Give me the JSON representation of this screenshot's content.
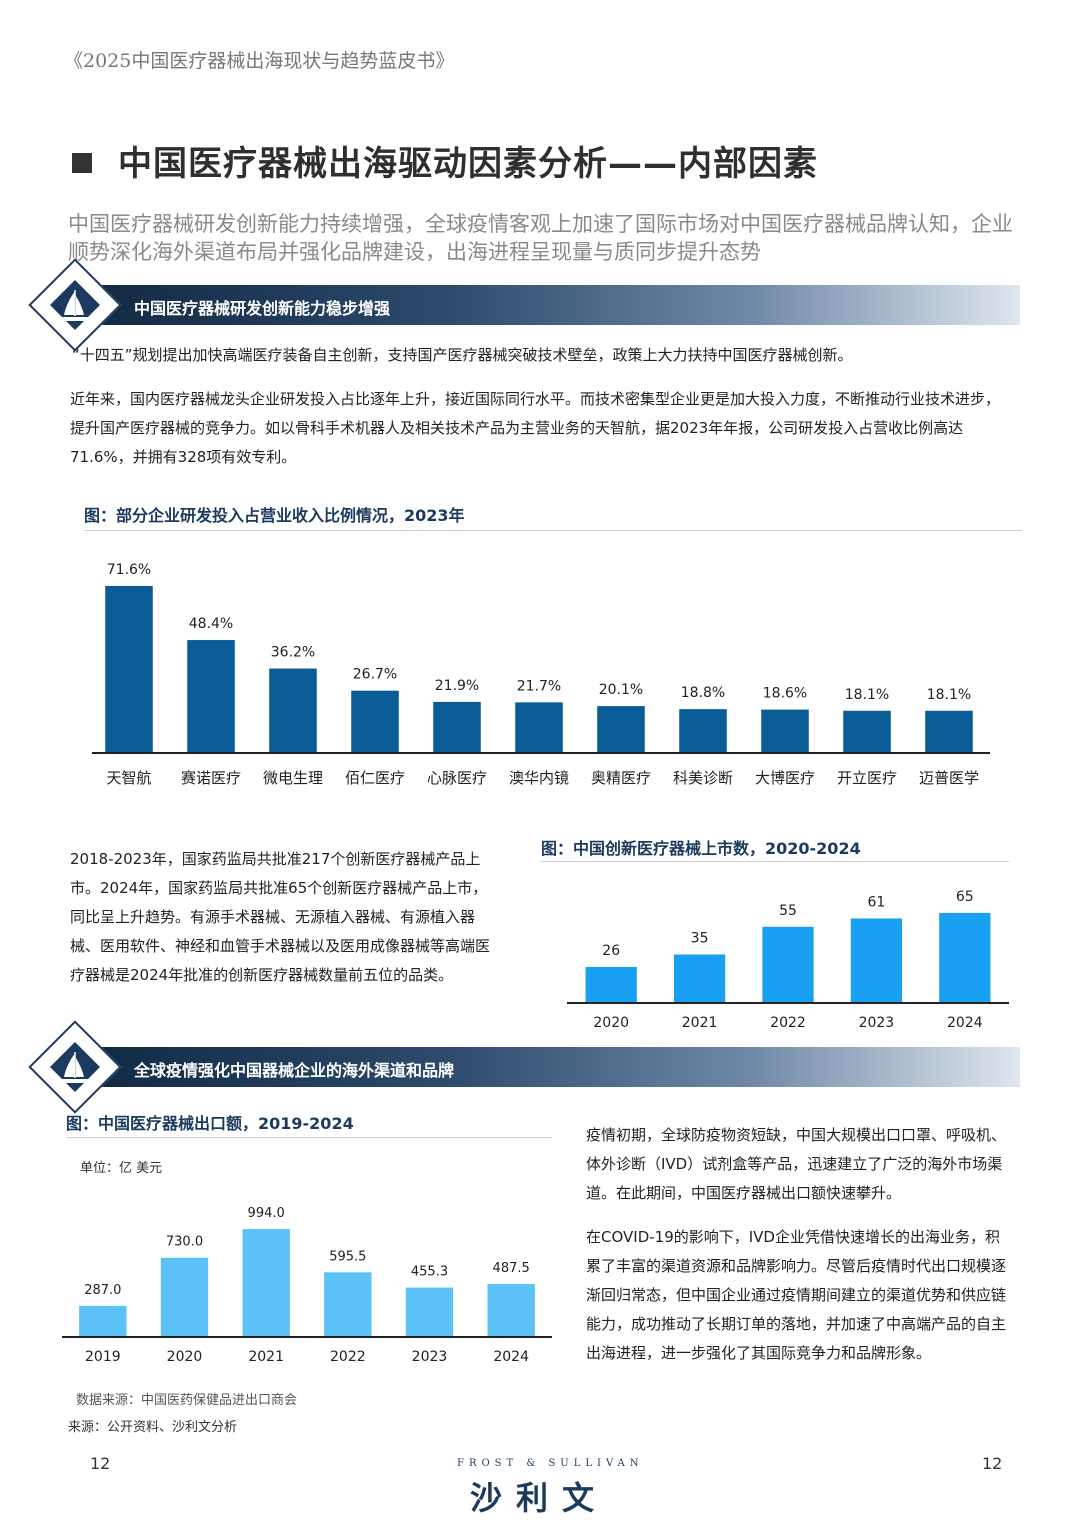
{
  "doc_title": "《2025中国医疗器械出海现状与趋势蓝皮书》",
  "main_title": "中国医疗器械出海驱动因素分析——内部因素",
  "subtitle": "中国医疗器械研发创新能力持续增强，全球疫情客观上加速了国际市场对中国医疗器械品牌认知，企业顺势深化海外渠道布局并强化品牌建设，出海进程呈现量与质同步提升态势",
  "section1": {
    "label": "中国医疗器械研发创新能力稳步增强",
    "p1": "“十四五”规划提出加快高端医疗装备自主创新，支持国产医疗器械突破技术壁垒，政策上大力扶持中国医疗器械创新。",
    "p2": "近年来，国内医疗器械龙头企业研发投入占比逐年上升，接近国际同行水平。而技术密集型企业更是加大投入力度，不断推动行业技术进步，提升国产医疗器械的竞争力。如以骨科手术机器人及相关技术产品为主营业务的天智航，据2023年年报，公司研发投入占营收比例高达71.6%，并拥有328项有效专利。",
    "p3": "2018-2023年，国家药监局共批准217个创新医疗器械产品上市。2024年，国家药监局共批准65个创新医疗器械产品上市，同比呈上升趋势。有源手术器械、无源植入器械、有源植入器械、医用软件、神经和血管手术器械以及医用成像器械等高端医疗器械是2024年批准的创新医疗器械数量前五位的品类。"
  },
  "section2": {
    "label": "全球疫情强化中国器械企业的海外渠道和品牌",
    "p1": "疫情初期，全球防疫物资短缺，中国大规模出口口罩、呼吸机、体外诊断（IVD）试剂盒等产品，迅速建立了广泛的海外市场渠道。在此期间，中国医疗器械出口额快速攀升。",
    "p2": "在COVID-19的影响下，IVD企业凭借快速增长的出海业务，积累了丰富的渠道资源和品牌影响力。尽管后疫情时代出口规模逐渐回归常态，但中国企业通过疫情期间建立的渠道优势和供应链能力，成功推动了长期订单的落地，并加速了中高端产品的自主出海进程，进一步强化了其国际竞争力和品牌形象。"
  },
  "chart_data": [
    {
      "type": "bar",
      "title": "图：部分企业研发投入占营业收入比例情况，2023年",
      "categories": [
        "天智航",
        "赛诺医疗",
        "微电生理",
        "佰仁医疗",
        "心脉医疗",
        "澳华内镜",
        "奥精医疗",
        "科美诊断",
        "大博医疗",
        "开立医疗",
        "迈普医学"
      ],
      "values": [
        71.6,
        48.4,
        36.2,
        26.7,
        21.9,
        21.7,
        20.1,
        18.8,
        18.6,
        18.1,
        18.1
      ],
      "labels": [
        "71.6%",
        "48.4%",
        "36.2%",
        "26.7%",
        "21.9%",
        "21.7%",
        "20.1%",
        "18.8%",
        "18.6%",
        "18.1%",
        "18.1%"
      ],
      "ylim": [
        0,
        75
      ],
      "color": "#0a5c96"
    },
    {
      "type": "bar",
      "title": "图：中国创新医疗器械上市数，2020-2024",
      "categories": [
        "2020",
        "2021",
        "2022",
        "2023",
        "2024"
      ],
      "values": [
        26,
        35,
        55,
        61,
        65
      ],
      "labels": [
        "26",
        "35",
        "55",
        "61",
        "65"
      ],
      "ylim": [
        0,
        70
      ],
      "color": "#1aa0f2"
    },
    {
      "type": "bar",
      "title": "图：中国医疗器械出口额，2019-2024",
      "unit": "单位：亿 美元",
      "categories": [
        "2019",
        "2020",
        "2021",
        "2022",
        "2023",
        "2024"
      ],
      "values": [
        287.0,
        730.0,
        994.0,
        595.5,
        455.3,
        487.5
      ],
      "labels": [
        "287.0",
        "730.0",
        "994.0",
        "595.5",
        "455.3",
        "487.5"
      ],
      "ylim": [
        0,
        1050
      ],
      "color": "#5bc1f7",
      "note": "数据来源：中国医药保健品进出口商会"
    }
  ],
  "source": "来源：公开资料、沙利文分析",
  "footer": {
    "page_left": "12",
    "page_right": "12",
    "brand_en": "FROST & SULLIVAN",
    "brand_cn": "沙利文"
  }
}
